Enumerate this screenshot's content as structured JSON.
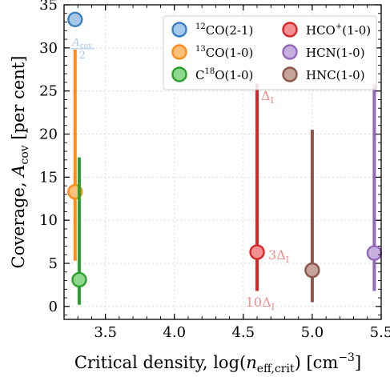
{
  "chart_data": {
    "type": "scatter",
    "xlabel_main": "Critical density, log(",
    "xlabel_var": "n",
    "xlabel_sub": "eff,crit",
    "xlabel_close": ") [cm",
    "xlabel_sup": "−3",
    "xlabel_end": "]",
    "ylabel_main": "Coverage, ",
    "ylabel_var": "A",
    "ylabel_sub": "cov",
    "ylabel_end": " [per cent]",
    "xlim": [
      3.2,
      5.5
    ],
    "ylim": [
      -1.5,
      35
    ],
    "xticks": [
      3.5,
      4.0,
      4.5,
      5.0,
      5.5
    ],
    "xtick_labels": [
      "3.5",
      "4.0",
      "4.5",
      "5.0",
      "5.5"
    ],
    "yticks": [
      0,
      5,
      10,
      15,
      20,
      25,
      30,
      35
    ],
    "ytick_labels": [
      "0",
      "5",
      "10",
      "15",
      "20",
      "25",
      "30",
      "35"
    ],
    "grid": true,
    "legend_position": "top-right",
    "series": [
      {
        "name_sup": "12",
        "name": "CO(2-1)",
        "x": 3.28,
        "y": 33.3,
        "err_low": null,
        "err_high": null,
        "color": "#3b7fc4",
        "face": "#a6c8e9"
      },
      {
        "name_sup": "13",
        "name": "CO(1-0)",
        "x": 3.28,
        "y": 13.3,
        "err_low": 5.3,
        "err_high": 29.8,
        "color": "#ff8c1a",
        "face": "#ffc07a"
      },
      {
        "name_pre": "C",
        "name_sup": "18",
        "name": "O(1-0)",
        "x": 3.31,
        "y": 3.1,
        "err_low": 0.2,
        "err_high": 17.3,
        "color": "#2ca02c",
        "face": "#8fd98f"
      },
      {
        "name": "HCO",
        "name_sup": "+",
        "name_post": "(1-0)",
        "x": 4.6,
        "y": 6.3,
        "err_low": 1.8,
        "err_high": 25.8,
        "color": "#d62728",
        "face": "#f19192"
      },
      {
        "name": "HCN(1-0)",
        "x": 5.45,
        "y": 6.2,
        "err_low": 1.8,
        "err_high": 25.8,
        "color": "#9467bd",
        "face": "#c8b0de"
      },
      {
        "name": "HNC(1-0)",
        "x": 5.0,
        "y": 4.2,
        "err_low": 0.5,
        "err_high": 20.5,
        "color": "#8c564b",
        "face": "#c8a39b"
      }
    ],
    "annotations": [
      {
        "text_var": "A",
        "text_sub": "cov",
        "den": "2",
        "x": 3.28,
        "y": 31.2,
        "color": "#a6c8e9"
      },
      {
        "text_main": "Δ",
        "text_sub": "I",
        "x": 4.6,
        "y": 24.5,
        "color": "#f28b8c"
      },
      {
        "text_main": "3Δ",
        "text_sub": "I",
        "x": 4.6,
        "y": 6.1,
        "color": "#f28b8c"
      },
      {
        "text_main": "10Δ",
        "text_sub": "I",
        "x": 4.6,
        "y": 0.0,
        "color": "#f28b8c"
      }
    ]
  }
}
